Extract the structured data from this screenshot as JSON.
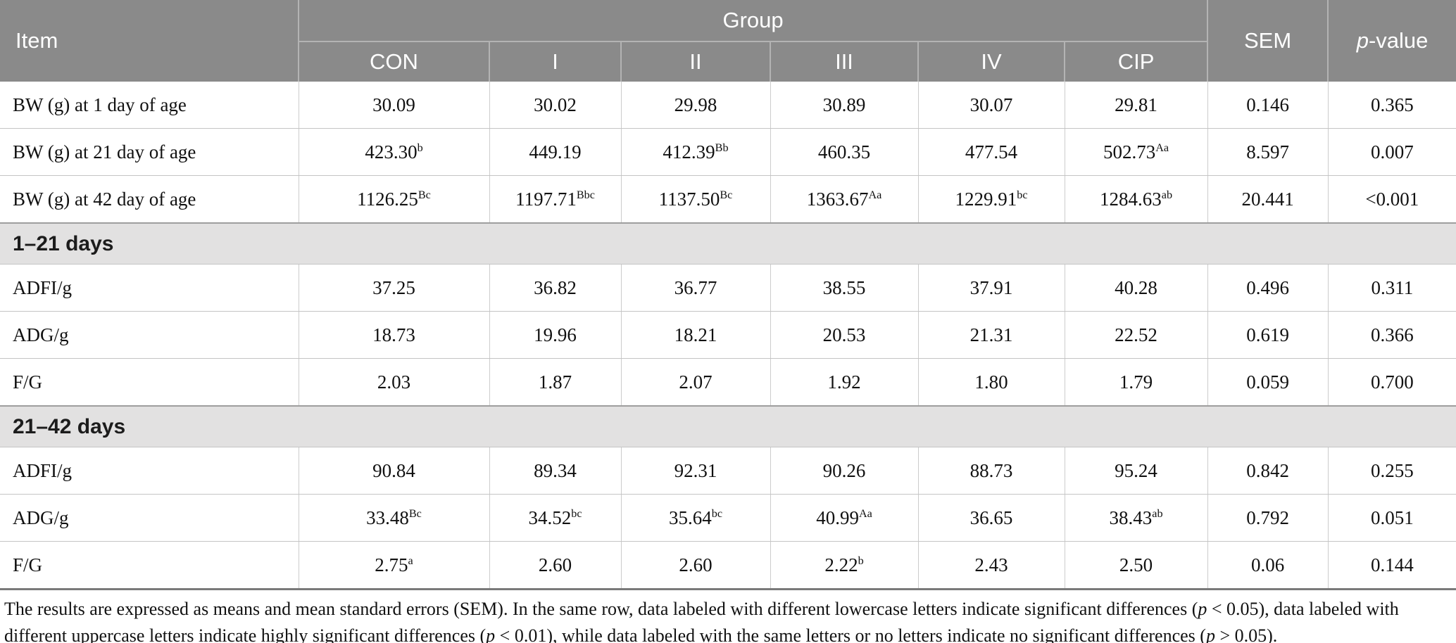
{
  "colors": {
    "header_bg": "#8a8a8a",
    "header_text": "#ffffff",
    "section_bg": "#e2e1e1",
    "row_border": "#c4c4c4",
    "column_border": "#cccccc",
    "table_bottom_border": "#7a7a7a"
  },
  "table": {
    "header": {
      "item": "Item",
      "group": "Group",
      "subgroups": [
        "CON",
        "I",
        "II",
        "III",
        "IV",
        "CIP"
      ],
      "sem": "SEM",
      "p_italic": "p",
      "p_rest": "-value"
    },
    "rows": [
      {
        "type": "data",
        "item": "BW (g) at 1 day of age",
        "cells": [
          {
            "v": "30.09"
          },
          {
            "v": "30.02"
          },
          {
            "v": "29.98"
          },
          {
            "v": "30.89"
          },
          {
            "v": "30.07"
          },
          {
            "v": "29.81"
          },
          {
            "v": "0.146"
          },
          {
            "v": "0.365"
          }
        ]
      },
      {
        "type": "data",
        "item": "BW (g) at 21 day of age",
        "cells": [
          {
            "v": "423.30",
            "sup": "b"
          },
          {
            "v": "449.19"
          },
          {
            "v": "412.39",
            "sup": "Bb"
          },
          {
            "v": "460.35"
          },
          {
            "v": "477.54"
          },
          {
            "v": "502.73",
            "sup": "Aa"
          },
          {
            "v": "8.597"
          },
          {
            "v": "0.007"
          }
        ]
      },
      {
        "type": "data",
        "item": "BW (g) at 42 day of age",
        "cells": [
          {
            "v": "1126.25",
            "sup": "Bc"
          },
          {
            "v": "1197.71",
            "sup": "Bbc"
          },
          {
            "v": "1137.50",
            "sup": "Bc"
          },
          {
            "v": "1363.67",
            "sup": "Aa"
          },
          {
            "v": "1229.91",
            "sup": "bc"
          },
          {
            "v": "1284.63",
            "sup": "ab"
          },
          {
            "v": "20.441"
          },
          {
            "v": "<0.001"
          }
        ]
      },
      {
        "type": "section",
        "label": "1–21 days"
      },
      {
        "type": "data",
        "item": "ADFI/g",
        "cells": [
          {
            "v": "37.25"
          },
          {
            "v": "36.82"
          },
          {
            "v": "36.77"
          },
          {
            "v": "38.55"
          },
          {
            "v": "37.91"
          },
          {
            "v": "40.28"
          },
          {
            "v": "0.496"
          },
          {
            "v": "0.311"
          }
        ]
      },
      {
        "type": "data",
        "item": "ADG/g",
        "cells": [
          {
            "v": "18.73"
          },
          {
            "v": "19.96"
          },
          {
            "v": "18.21"
          },
          {
            "v": "20.53"
          },
          {
            "v": "21.31"
          },
          {
            "v": "22.52"
          },
          {
            "v": "0.619"
          },
          {
            "v": "0.366"
          }
        ]
      },
      {
        "type": "data",
        "item": "F/G",
        "cells": [
          {
            "v": "2.03"
          },
          {
            "v": "1.87"
          },
          {
            "v": "2.07"
          },
          {
            "v": "1.92"
          },
          {
            "v": "1.80"
          },
          {
            "v": "1.79"
          },
          {
            "v": "0.059"
          },
          {
            "v": "0.700"
          }
        ]
      },
      {
        "type": "section",
        "label": "21–42 days"
      },
      {
        "type": "data",
        "item": "ADFI/g",
        "cells": [
          {
            "v": "90.84"
          },
          {
            "v": "89.34"
          },
          {
            "v": "92.31"
          },
          {
            "v": "90.26"
          },
          {
            "v": "88.73"
          },
          {
            "v": "95.24"
          },
          {
            "v": "0.842"
          },
          {
            "v": "0.255"
          }
        ]
      },
      {
        "type": "data",
        "item": "ADG/g",
        "cells": [
          {
            "v": "33.48",
            "sup": "Bc"
          },
          {
            "v": "34.52",
            "sup": "bc"
          },
          {
            "v": "35.64",
            "sup": "bc"
          },
          {
            "v": "40.99",
            "sup": "Aa"
          },
          {
            "v": "36.65"
          },
          {
            "v": "38.43",
            "sup": "ab"
          },
          {
            "v": "0.792"
          },
          {
            "v": "0.051"
          }
        ]
      },
      {
        "type": "data",
        "item": "F/G",
        "cells": [
          {
            "v": "2.75",
            "sup": "a"
          },
          {
            "v": "2.60"
          },
          {
            "v": "2.60"
          },
          {
            "v": "2.22",
            "sup": "b"
          },
          {
            "v": "2.43"
          },
          {
            "v": "2.50"
          },
          {
            "v": "0.06"
          },
          {
            "v": "0.144"
          }
        ]
      }
    ]
  },
  "footnote": {
    "segments": [
      {
        "text": "The results are expressed as means and mean standard errors (SEM). In the same row, data labeled with different lowercase letters indicate significant differences ("
      },
      {
        "text": "p",
        "italic": true
      },
      {
        "text": " < 0.05), data labeled with different uppercase letters indicate highly significant differences ("
      },
      {
        "text": "p",
        "italic": true
      },
      {
        "text": " < 0.01), while data labeled with the same letters or no letters indicate no significant differences ("
      },
      {
        "text": "p",
        "italic": true
      },
      {
        "text": " > 0.05)."
      }
    ]
  }
}
